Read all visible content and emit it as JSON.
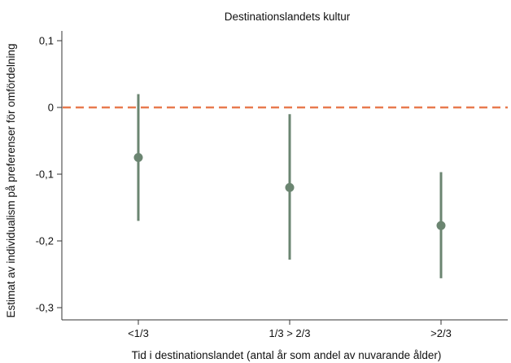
{
  "chart_data": {
    "type": "scatter",
    "title": "Destinationslandets kultur",
    "xlabel": "Tid i destinationslandet (antal år som andel av nuvarande ålder)",
    "ylabel": "Estimat av individualism på preferenser för omfördelning",
    "categories": [
      "<1/3",
      "1/3 > 2/3",
      ">2/3"
    ],
    "series": [
      {
        "points": [
          {
            "category": "<1/3",
            "estimate": -0.075,
            "ci_low": -0.17,
            "ci_high": 0.02
          },
          {
            "category": "1/3 > 2/3",
            "estimate": -0.12,
            "ci_low": -0.228,
            "ci_high": -0.01
          },
          {
            "category": ">2/3",
            "estimate": -0.177,
            "ci_low": -0.256,
            "ci_high": -0.097
          }
        ]
      }
    ],
    "yticks": [
      0.1,
      0,
      -0.1,
      -0.2,
      -0.3
    ],
    "ytick_labels": [
      "0,1",
      "0",
      "-0,1",
      "-0,2",
      "-0,3"
    ],
    "ylim": [
      -0.31,
      0.12
    ],
    "reference_line": {
      "y": 0,
      "style": "dashed"
    },
    "grid": false,
    "colors": {
      "marker": "#6b8571",
      "reference_line": "#e87a4f",
      "axis": "#333333"
    }
  }
}
